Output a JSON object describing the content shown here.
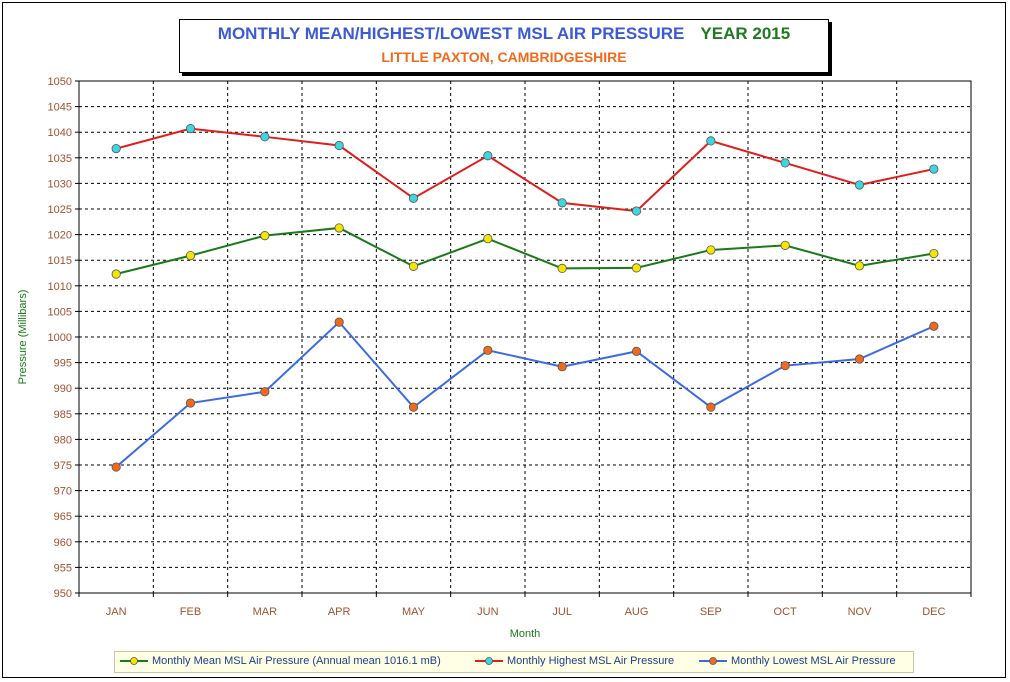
{
  "chart_data": {
    "type": "line",
    "title": "MONTHLY MEAN/HIGHEST/LOWEST MSL AIR PRESSURE",
    "title_year": "YEAR 2015",
    "subtitle": "LITTLE PAXTON, CAMBRIDGESHIRE",
    "xlabel": "Month",
    "ylabel": "Pressure (Millibars)",
    "ylim": [
      950,
      1050
    ],
    "ytick_step": 5,
    "grid": true,
    "legend_position": "bottom",
    "categories": [
      "JAN",
      "FEB",
      "MAR",
      "APR",
      "MAY",
      "JUN",
      "JUL",
      "AUG",
      "SEP",
      "OCT",
      "NOV",
      "DEC"
    ],
    "series": [
      {
        "name": "Monthly Mean MSL Air Pressure (Annual mean 1016.1 mB)",
        "line_color": "#1a7a1a",
        "marker_color": "#f2e600",
        "values": [
          1012.3,
          1015.9,
          1019.8,
          1021.3,
          1013.8,
          1019.2,
          1013.4,
          1013.5,
          1017.0,
          1017.9,
          1013.9,
          1016.3
        ]
      },
      {
        "name": "Monthly Highest MSL Air Pressure",
        "line_color": "#e01e1e",
        "marker_color": "#3dd6e0",
        "values": [
          1036.8,
          1040.7,
          1039.1,
          1037.4,
          1027.1,
          1035.4,
          1026.2,
          1024.6,
          1038.3,
          1034.0,
          1029.7,
          1032.8
        ]
      },
      {
        "name": "Monthly Lowest MSL Air Pressure",
        "line_color": "#3b6be0",
        "marker_color": "#f06a1c",
        "values": [
          974.6,
          987.1,
          989.3,
          1002.9,
          986.3,
          997.4,
          994.2,
          997.2,
          986.3,
          994.4,
          995.7,
          1002.1
        ]
      }
    ]
  },
  "colors": {
    "tick_label": "#a0522d",
    "axis_label": "#1a7a1a",
    "title_main": "#3b5ad6",
    "title_year": "#1f7a1f",
    "subtitle": "#f06a1c"
  }
}
